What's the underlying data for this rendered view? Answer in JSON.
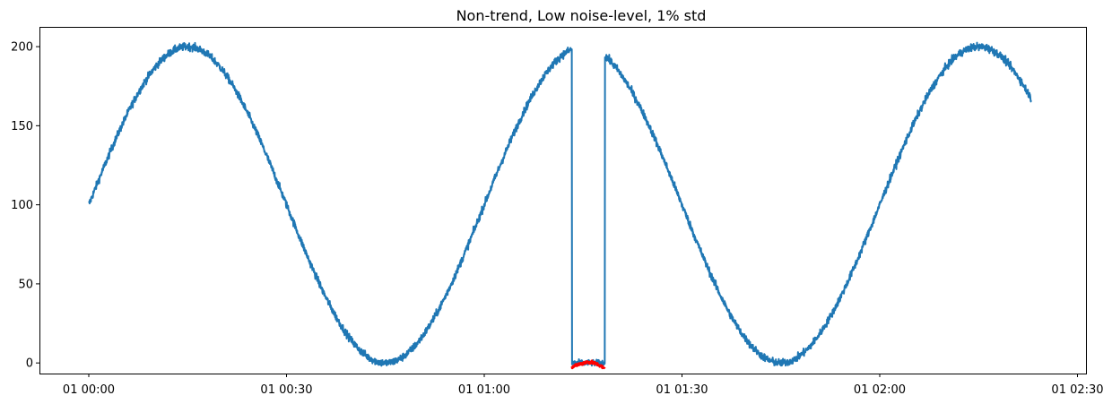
{
  "chart_data": {
    "type": "line",
    "title": "Non-trend, Low noise-level, 1% std",
    "xlabel": "",
    "ylabel": "",
    "x_unit": "minutes",
    "x_range": [
      0,
      144
    ],
    "ylim": [
      -6.7,
      212.5
    ],
    "grid": false,
    "x_tick_labels": [
      {
        "x": 0,
        "label": "01 00:00"
      },
      {
        "x": 30,
        "label": "01 00:30"
      },
      {
        "x": 60,
        "label": "01 01:00"
      },
      {
        "x": 90,
        "label": "01 01:30"
      },
      {
        "x": 120,
        "label": "01 02:00"
      },
      {
        "x": 150,
        "label": "01 02:30"
      }
    ],
    "y_ticks": [
      0,
      50,
      100,
      150,
      200
    ],
    "series": [
      {
        "color": "#1f77b4",
        "model": {
          "offset": 100,
          "amplitude": 100,
          "period_min": 60,
          "start_min": 0,
          "end_min": 143
        },
        "noise_std": 1.2,
        "anomaly_window": {
          "start_min": 73.3,
          "end_min": 78.3,
          "value": 0
        }
      },
      {
        "color": "#ff0000",
        "points": [
          {
            "x": 73.3,
            "y": -2.5
          },
          {
            "x": 74.0,
            "y": -1.3
          },
          {
            "x": 74.8,
            "y": -0.4
          },
          {
            "x": 75.6,
            "y": 0.6
          },
          {
            "x": 76.3,
            "y": 0.4
          },
          {
            "x": 77.0,
            "y": -0.6
          },
          {
            "x": 77.7,
            "y": -2.0
          },
          {
            "x": 78.3,
            "y": -3.6
          }
        ]
      }
    ]
  }
}
